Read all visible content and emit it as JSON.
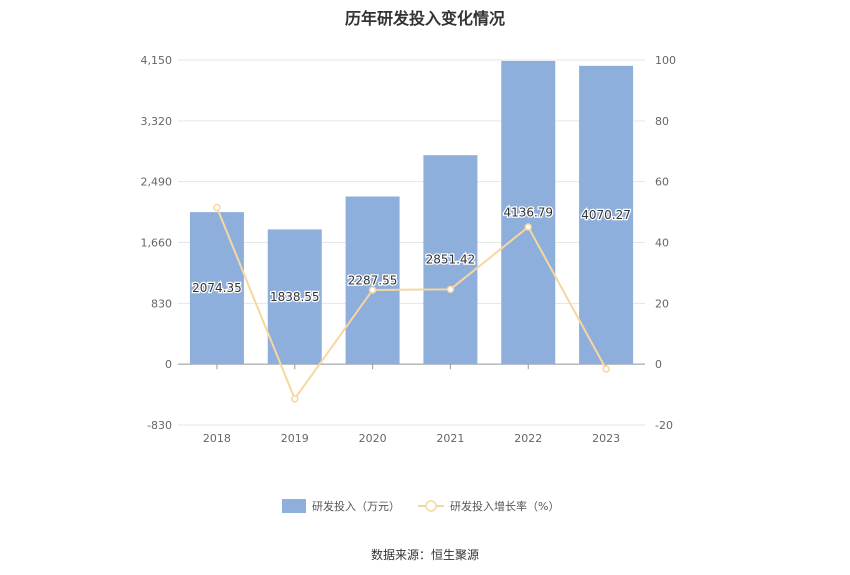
{
  "chart_data": {
    "type": "bar+line",
    "title": "历年研发投入变化情况",
    "source": "数据来源：恒生聚源",
    "categories": [
      "2018",
      "2019",
      "2020",
      "2021",
      "2022",
      "2023"
    ],
    "series": [
      {
        "name": "研发投入（万元）",
        "type": "bar",
        "axis": "left",
        "color": "#8eaedb",
        "values": [
          2074.35,
          1838.55,
          2287.55,
          2851.42,
          4136.79,
          4070.27
        ],
        "labels": [
          "2074.35",
          "1838.55",
          "2287.55",
          "2851.42",
          "4136.79",
          "4070.27"
        ]
      },
      {
        "name": "研发投入增长率（%）",
        "type": "line",
        "axis": "right",
        "color": "#f6d7a0",
        "values": [
          51.5,
          -11.4,
          24.4,
          24.6,
          45.1,
          -1.6
        ]
      }
    ],
    "y_left": {
      "min": -830,
      "max": 4150,
      "ticks": [
        "-830",
        "0",
        "830",
        "1,660",
        "2,490",
        "3,320",
        "4,150"
      ]
    },
    "y_right": {
      "min": -20,
      "max": 100,
      "ticks": [
        "-20",
        "0",
        "20",
        "40",
        "60",
        "80",
        "100"
      ]
    },
    "legend_position": "bottom",
    "grid": true
  }
}
